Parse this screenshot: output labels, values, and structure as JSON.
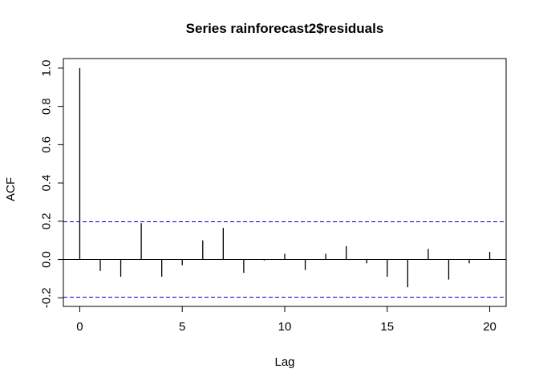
{
  "chart_data": {
    "type": "bar",
    "title": "Series  rainforecast2$residuals",
    "xlabel": "Lag",
    "ylabel": "ACF",
    "xlim": [
      -0.8,
      20.8
    ],
    "ylim": [
      -0.245,
      1.05
    ],
    "x_ticks": [
      0,
      5,
      10,
      15,
      20
    ],
    "y_ticks": [
      -0.2,
      0.0,
      0.2,
      0.4,
      0.6,
      0.8,
      1.0
    ],
    "y_tick_labels": [
      "-0.2",
      "0.0",
      "0.2",
      "0.4",
      "0.6",
      "0.8",
      "1.0"
    ],
    "lags": [
      0,
      1,
      2,
      3,
      4,
      5,
      6,
      7,
      8,
      9,
      10,
      11,
      12,
      13,
      14,
      15,
      16,
      17,
      18,
      19,
      20
    ],
    "values": [
      1.0,
      -0.06,
      -0.09,
      0.19,
      -0.09,
      -0.03,
      0.1,
      0.165,
      -0.07,
      -0.005,
      0.03,
      -0.055,
      0.03,
      0.07,
      -0.02,
      -0.09,
      -0.145,
      0.055,
      -0.105,
      -0.02,
      0.04
    ],
    "confidence_bound": 0.197,
    "confidence_color": "#0000cc",
    "bar_color": "#000000",
    "grid": false
  }
}
